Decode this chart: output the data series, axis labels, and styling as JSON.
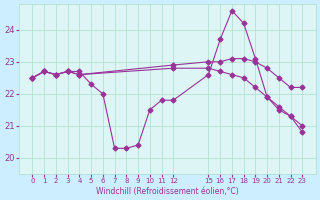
{
  "background_color": "#cceeff",
  "plot_bg_color": "#ddf5f5",
  "line_color": "#993399",
  "marker_color": "#993399",
  "xlabel": "Windchill (Refroidissement éolien,°C)",
  "xlabel_color": "#993399",
  "ylabel_color": "#993399",
  "ylim": [
    19.5,
    24.8
  ],
  "yticks": [
    20,
    21,
    22,
    23,
    24
  ],
  "xticks": [
    0,
    1,
    2,
    3,
    4,
    5,
    6,
    7,
    8,
    9,
    10,
    11,
    12,
    15,
    16,
    17,
    18,
    19,
    20,
    21,
    22,
    23
  ],
  "grid_color": "#aaddcc",
  "series": [
    {
      "x": [
        0,
        1,
        2,
        3,
        4,
        5,
        6,
        7,
        8,
        9,
        10,
        11,
        12,
        15,
        16,
        17,
        18,
        19,
        20,
        21,
        22,
        23
      ],
      "y": [
        22.5,
        22.7,
        22.6,
        22.7,
        22.7,
        22.3,
        22.0,
        20.3,
        20.3,
        20.4,
        21.5,
        21.8,
        21.8,
        22.6,
        23.7,
        24.6,
        24.2,
        23.1,
        21.9,
        21.5,
        21.3,
        20.8
      ]
    },
    {
      "x": [
        0,
        1,
        2,
        3,
        4,
        12,
        15,
        16,
        17,
        18,
        19,
        20,
        21,
        22,
        23
      ],
      "y": [
        22.5,
        22.7,
        22.6,
        22.7,
        22.6,
        22.9,
        23.0,
        23.0,
        23.1,
        23.1,
        23.0,
        22.8,
        22.5,
        22.2,
        22.2
      ]
    },
    {
      "x": [
        0,
        1,
        2,
        3,
        4,
        12,
        15,
        16,
        17,
        18,
        19,
        20,
        21,
        22,
        23
      ],
      "y": [
        22.5,
        22.7,
        22.6,
        22.7,
        22.6,
        22.8,
        22.8,
        22.7,
        22.6,
        22.5,
        22.2,
        21.9,
        21.6,
        21.3,
        21.0
      ]
    }
  ]
}
